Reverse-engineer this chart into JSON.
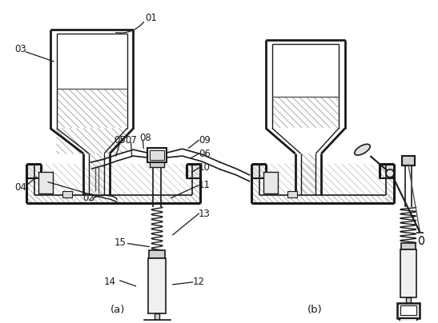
{
  "fig_width": 5.47,
  "fig_height": 4.04,
  "dpi": 100,
  "bg_color": "#ffffff",
  "lc": "#1a1a1a",
  "hatch_lc": "#888888",
  "label_color": "#1a1a1a"
}
